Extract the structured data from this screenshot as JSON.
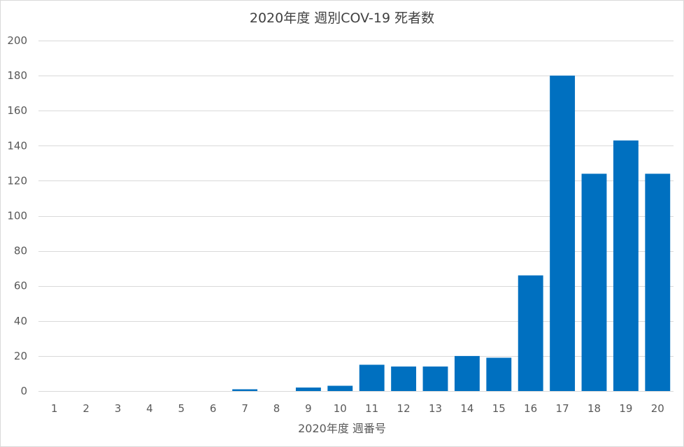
{
  "chart_data": {
    "type": "bar",
    "title": "2020年度 週別COV-19 死者数",
    "xlabel": "2020年度 週番号",
    "ylabel": "",
    "ylim": [
      0,
      200
    ],
    "y_ticks": [
      0,
      20,
      40,
      60,
      80,
      100,
      120,
      140,
      160,
      180,
      200
    ],
    "grid": true,
    "categories": [
      "1",
      "2",
      "3",
      "4",
      "5",
      "6",
      "7",
      "8",
      "9",
      "10",
      "11",
      "12",
      "13",
      "14",
      "15",
      "16",
      "17",
      "18",
      "19",
      "20"
    ],
    "values": [
      0,
      0,
      0,
      0,
      0,
      0,
      1,
      0,
      2,
      3,
      15,
      14,
      14,
      20,
      19,
      66,
      180,
      124,
      143,
      124
    ],
    "bar_color": "#0070c0"
  }
}
